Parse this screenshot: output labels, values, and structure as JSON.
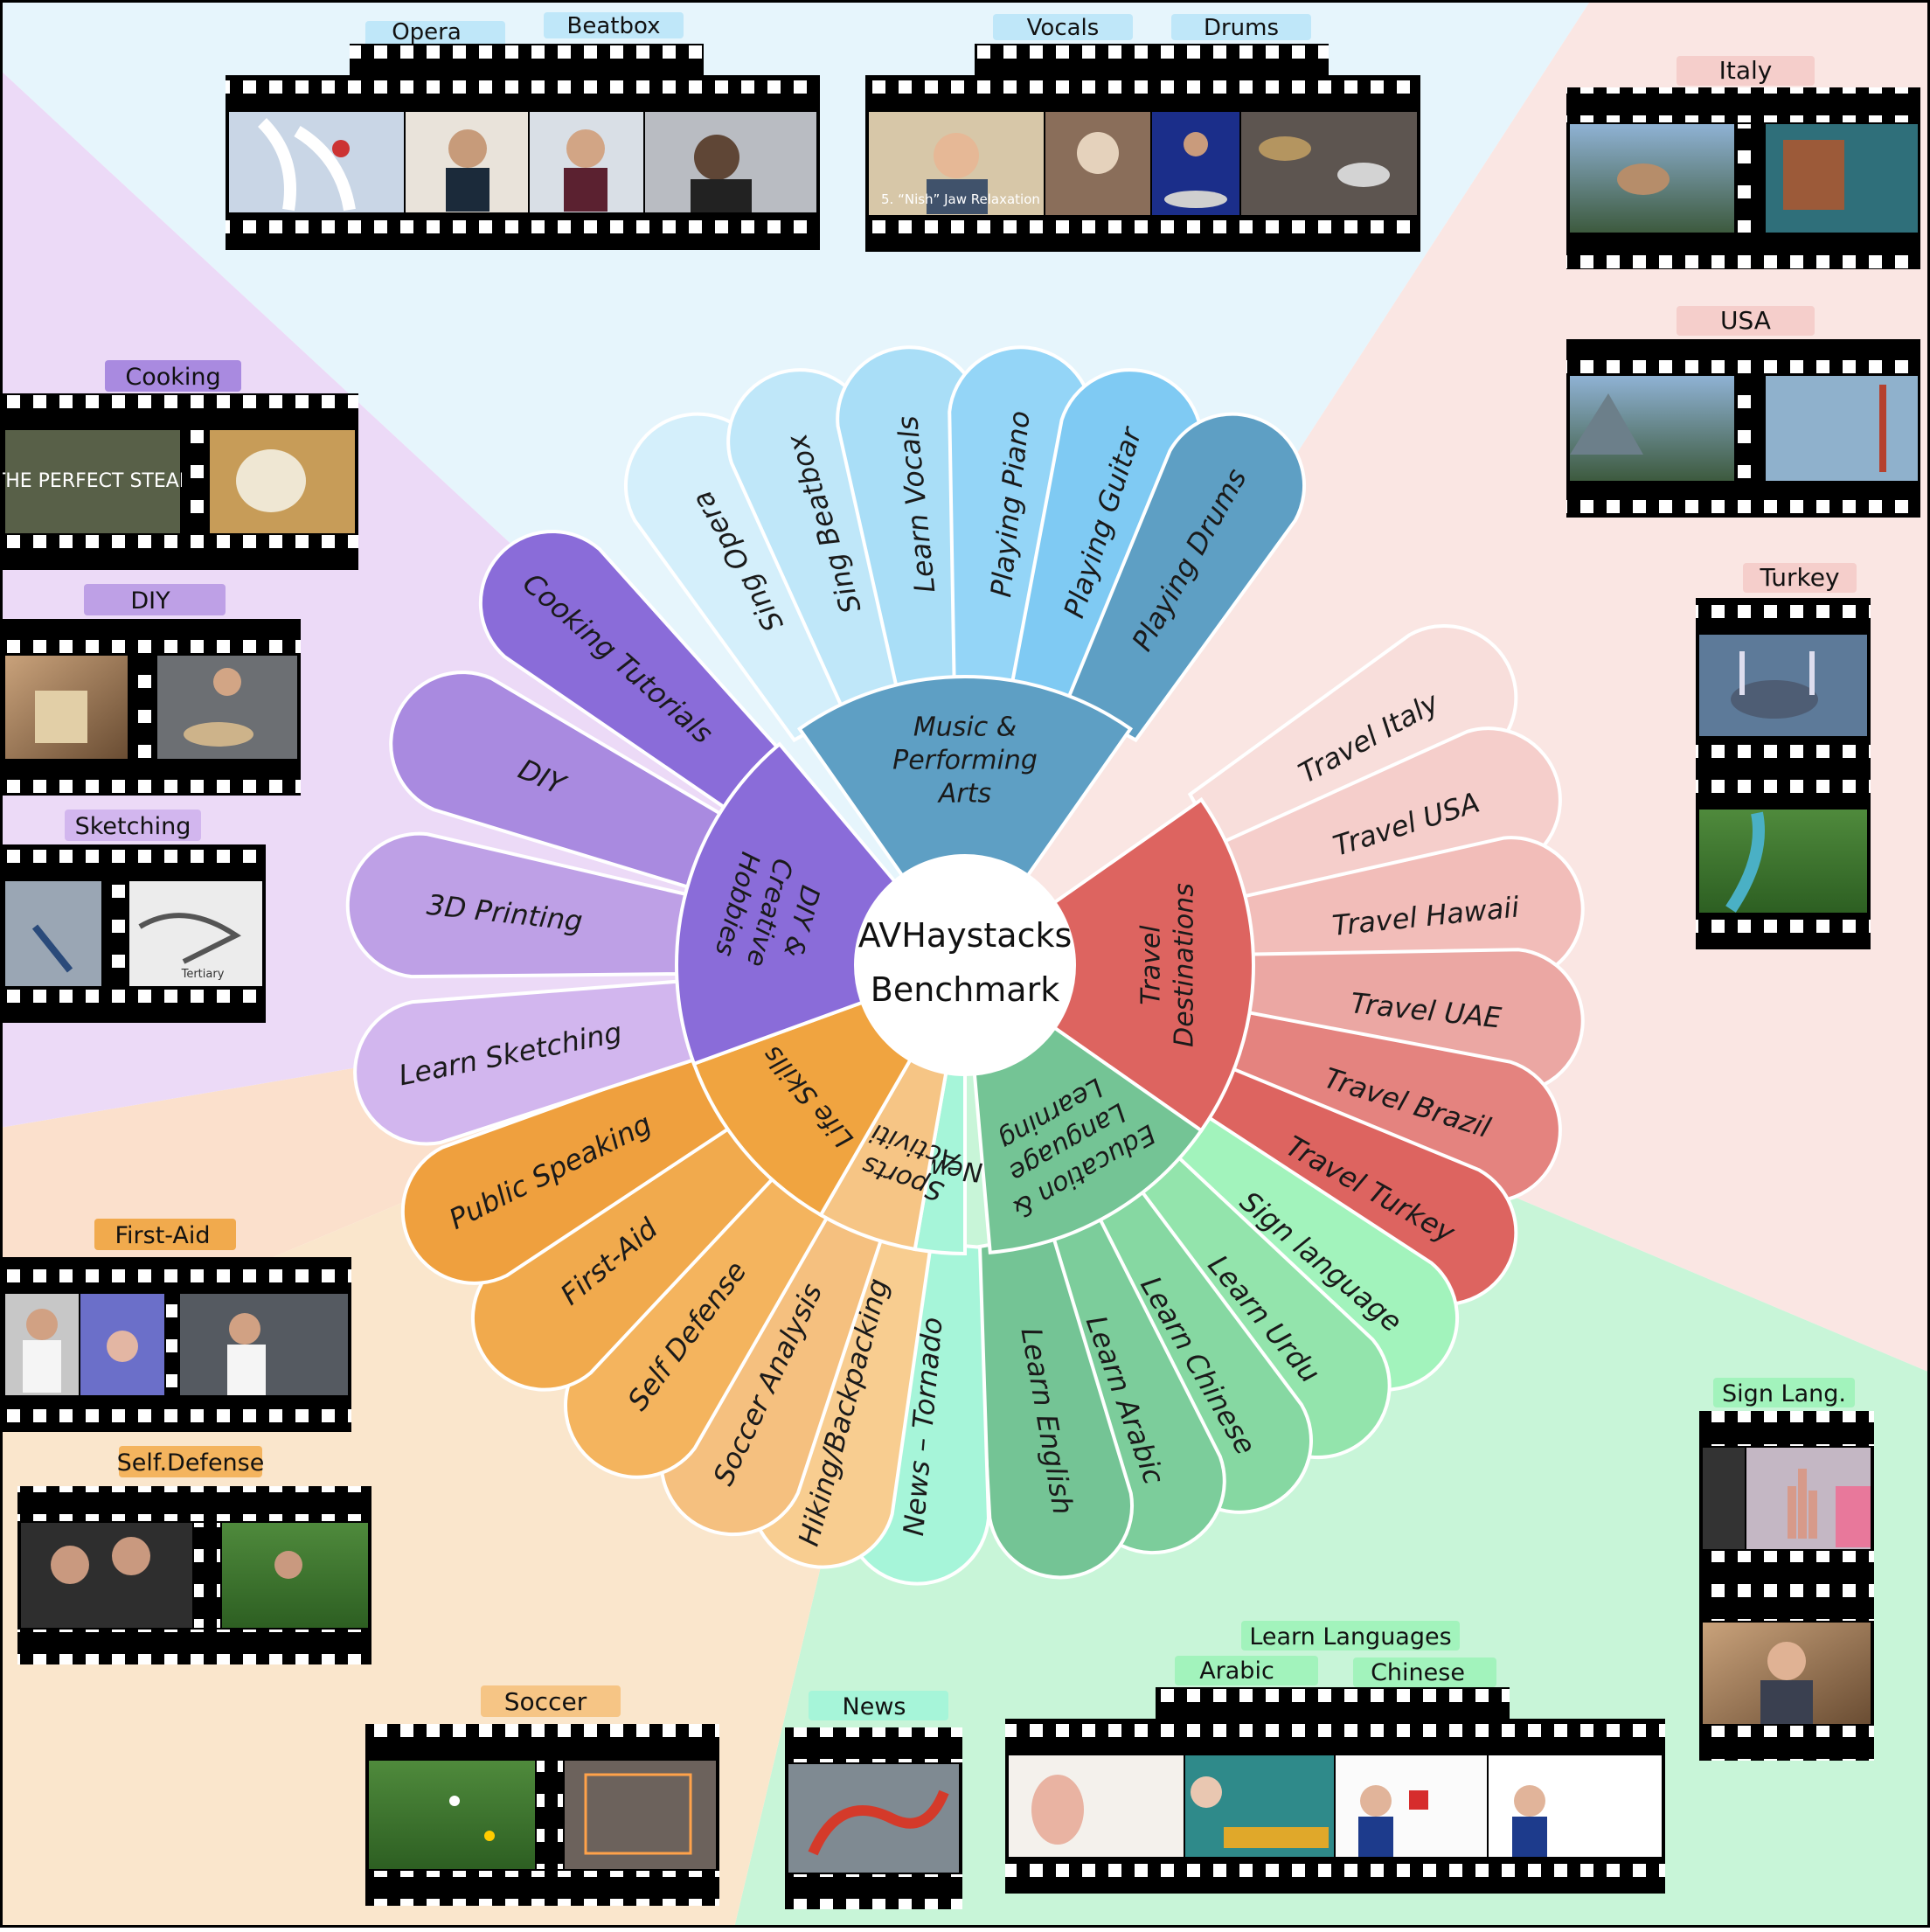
{
  "center": {
    "line1": "AVHaystacks",
    "line2": "Benchmark"
  },
  "colors": {
    "music_bg": "#e6f5fc",
    "travel_bg": "#fae6e3",
    "education_bg": "#c8f5d8",
    "sports_bg": "#fae6cc",
    "life_bg": "#fbe0cc",
    "diy_bg": "#ecdaf7",
    "film": "#000000",
    "hole": "#ffffff"
  },
  "categories": [
    {
      "id": "music",
      "lines": [
        "Music &",
        "Performing",
        "Arts"
      ],
      "inner_color": "#5e9fc4",
      "mid_angle": -90,
      "half_width": 35,
      "petals": [
        {
          "label": "Sing Opera",
          "color": "#d4effb"
        },
        {
          "label": "Sing Beatbox",
          "color": "#bfe7f9"
        },
        {
          "label": "Learn Vocals",
          "color": "#a9def7"
        },
        {
          "label": "Playing Piano",
          "color": "#94d5f7"
        },
        {
          "label": "Playing Guitar",
          "color": "#7fcaf3"
        },
        {
          "label": "Playing Drums",
          "color": "#5e9fc4"
        }
      ]
    },
    {
      "id": "travel",
      "lines": [
        "Travel",
        "Destinations"
      ],
      "inner_color": "#dd6460",
      "mid_angle": 0,
      "half_width": 35,
      "petals": [
        {
          "label": "Travel Italy",
          "color": "#f8dedb"
        },
        {
          "label": "Travel USA",
          "color": "#f5cecb"
        },
        {
          "label": "Travel Hawaii",
          "color": "#f2bdb9"
        },
        {
          "label": "Travel UAE",
          "color": "#eba7a3"
        },
        {
          "label": "Travel Brazil",
          "color": "#e4837f"
        },
        {
          "label": "Travel Turkey",
          "color": "#dd6460"
        }
      ]
    },
    {
      "id": "education",
      "lines": [
        "Education &",
        "Language",
        "Learning"
      ],
      "inner_color": "#74c495",
      "mid_angle": 60,
      "half_width": 25,
      "petals": [
        {
          "label": "Sign language",
          "color": "#a2f3bc"
        },
        {
          "label": "Learn Urdu",
          "color": "#93e4ac"
        },
        {
          "label": "Learn Chinese",
          "color": "#86d8a2"
        },
        {
          "label": "Learn Arabic",
          "color": "#7ccd9b"
        },
        {
          "label": "Learn English",
          "color": "#74c495"
        }
      ]
    },
    {
      "id": "news",
      "lines": [
        "News"
      ],
      "inner_color": "#a6f5d9",
      "mid_angle": 95,
      "half_width": 5,
      "petals": [
        {
          "label": "News – Tornado",
          "color": "#a6f5d9"
        }
      ]
    },
    {
      "id": "sports",
      "lines": [
        "Sports &",
        "Activities"
      ],
      "inner_color": "#f6c585",
      "mid_angle": 110,
      "half_width": 10,
      "petals": [
        {
          "label": "Hiking/Backpacking",
          "color": "#f8cd90"
        },
        {
          "label": "Soccer Analysis",
          "color": "#f5c07f"
        }
      ]
    },
    {
      "id": "life",
      "lines": [
        "Life Skills"
      ],
      "inner_color": "#f0a440",
      "mid_angle": 140,
      "half_width": 20,
      "petals": [
        {
          "label": "Self Defense",
          "color": "#f4b45e"
        },
        {
          "label": "First-Aid",
          "color": "#f1aa4d"
        },
        {
          "label": "Public Speaking",
          "color": "#efa03e"
        }
      ]
    },
    {
      "id": "diy",
      "lines": [
        "DIY &",
        "Creative",
        "Hobbies"
      ],
      "inner_color": "#8a6cd9",
      "mid_angle": 195,
      "half_width": 35,
      "petals": [
        {
          "label": "Learn Sketching",
          "color": "#d2b6ee"
        },
        {
          "label": "3D Printing",
          "color": "#bea0e6"
        },
        {
          "label": "DIY",
          "color": "#a98ae0"
        },
        {
          "label": "Cooking Tutorials",
          "color": "#8a6cd9"
        }
      ]
    }
  ],
  "thumbnails": [
    {
      "name": "opera-beatbox-filmstrip",
      "labels": [
        "Opera",
        "Beatbox"
      ],
      "label_color": "#bfe7f9"
    },
    {
      "name": "vocals-drums-filmstrip",
      "labels": [
        "Vocals",
        "Drums"
      ],
      "label_color": "#bfe7f9",
      "caption": "5. “Nish” Jaw Relaxation"
    },
    {
      "name": "italy-filmstrip",
      "labels": [
        "Italy"
      ],
      "label_color": "#f5cecb"
    },
    {
      "name": "usa-filmstrip",
      "labels": [
        "USA"
      ],
      "label_color": "#f5cecb"
    },
    {
      "name": "turkey-filmstrip",
      "labels": [
        "Turkey"
      ],
      "label_color": "#f5cecb"
    },
    {
      "name": "sign-lang-filmstrip",
      "labels": [
        "Sign Lang."
      ],
      "label_color": "#a2f3bc"
    },
    {
      "name": "learn-languages-filmstrip",
      "labels": [
        "Learn Languages",
        "Arabic",
        "Chinese"
      ],
      "label_color": "#a2f3bc"
    },
    {
      "name": "news-filmstrip",
      "labels": [
        "News"
      ],
      "label_color": "#a6f5d9"
    },
    {
      "name": "soccer-filmstrip",
      "labels": [
        "Soccer"
      ],
      "label_color": "#f6c585"
    },
    {
      "name": "self-defense-filmstrip",
      "labels": [
        "Self.Defense"
      ],
      "label_color": "#f4b45e"
    },
    {
      "name": "first-aid-filmstrip",
      "labels": [
        "First-Aid"
      ],
      "label_color": "#f1aa4d"
    },
    {
      "name": "sketching-filmstrip",
      "labels": [
        "Sketching"
      ],
      "label_color": "#d2b6ee"
    },
    {
      "name": "diy-filmstrip",
      "labels": [
        "DIY"
      ],
      "label_color": "#bea0e6"
    },
    {
      "name": "cooking-filmstrip",
      "labels": [
        "Cooking"
      ],
      "label_color": "#a98ae0",
      "caption": "THE PERFECT STEAK"
    }
  ],
  "misc_captions": {
    "sketch": "Tertiary"
  }
}
